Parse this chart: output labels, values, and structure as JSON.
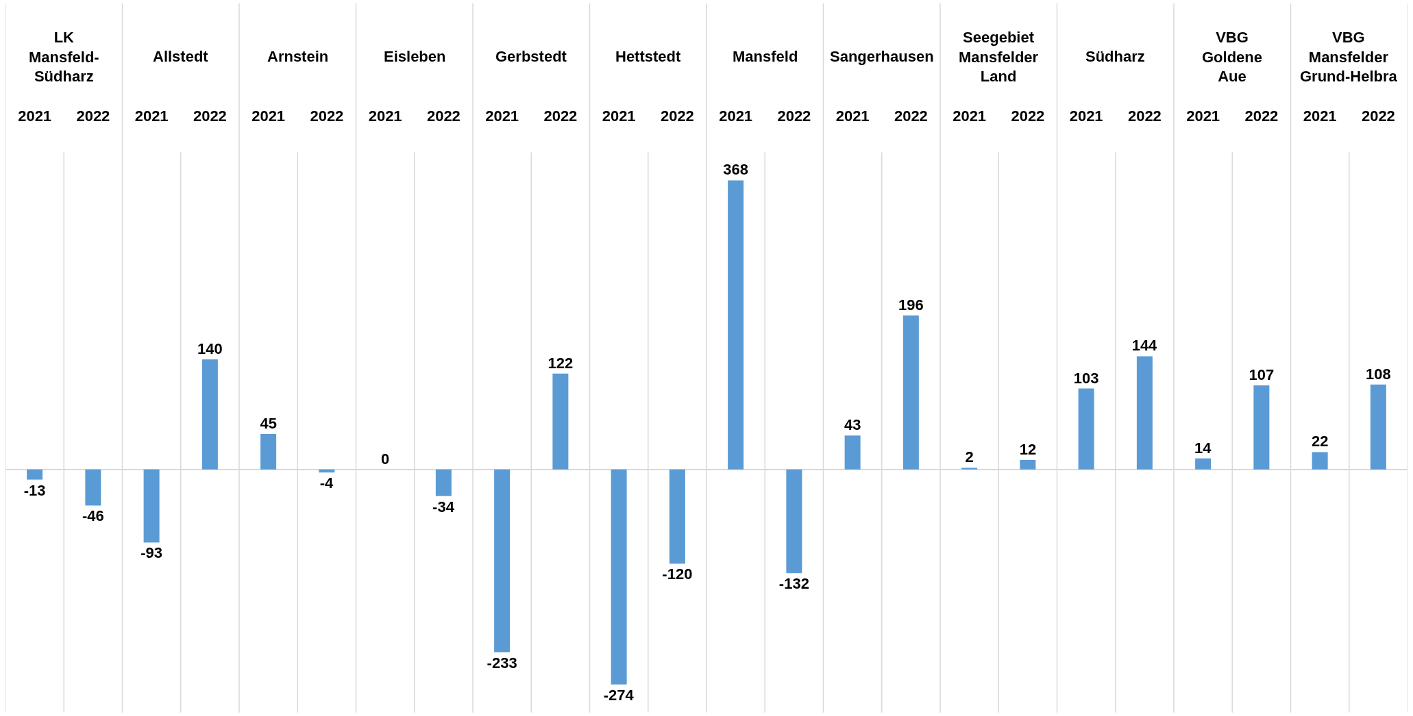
{
  "chart_data": {
    "type": "bar",
    "categories": [
      "2021",
      "2022",
      "2021",
      "2022",
      "2021",
      "2022",
      "2021",
      "2022",
      "2021",
      "2022",
      "2021",
      "2022",
      "2021",
      "2022",
      "2021",
      "2022",
      "2021",
      "2022",
      "2021",
      "2022",
      "2021",
      "2022",
      "2021",
      "2022"
    ],
    "values": [
      -13,
      -46,
      -93,
      140,
      45,
      -4,
      0,
      -34,
      -233,
      122,
      -274,
      -120,
      368,
      -132,
      43,
      196,
      2,
      12,
      103,
      144,
      14,
      107,
      22,
      108
    ],
    "color": "#5b9bd5",
    "data_labels": true,
    "grid": "x",
    "annotations": [
      "LK\nMansfeld-\nSüdharz",
      "Allstedt",
      "Arnstein",
      "Eisleben",
      "Gerbstedt",
      "Hettstedt",
      "Mansfeld",
      "Sangerhausen",
      "Seegebiet\nMansfelder\nLand",
      "Südharz",
      "VBG\nGoldene\nAue",
      "VBG\nMansfelder\nGrund-Helbra"
    ]
  }
}
